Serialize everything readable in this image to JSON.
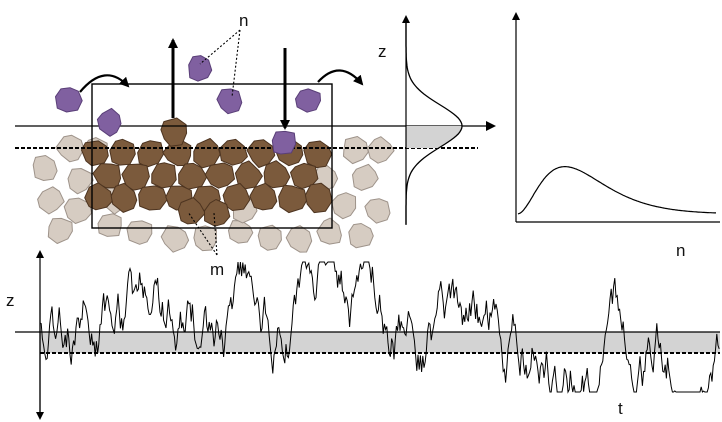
{
  "labels": {
    "particles": "n",
    "bed_grains": "m",
    "profile_axis": "z",
    "pdf_axis": "n",
    "series_y": "z",
    "series_x": "t"
  },
  "colors": {
    "particle": "#8060a0",
    "particle_edge": "#5a3f78",
    "bed_grain": "#7b5a3c",
    "bed_grain_edge": "#4d3420",
    "sand_grain": "#d6ccc2",
    "sand_grain_edge": "#9e938a",
    "shading": "#d3d3d3",
    "line": "#000000"
  }
}
